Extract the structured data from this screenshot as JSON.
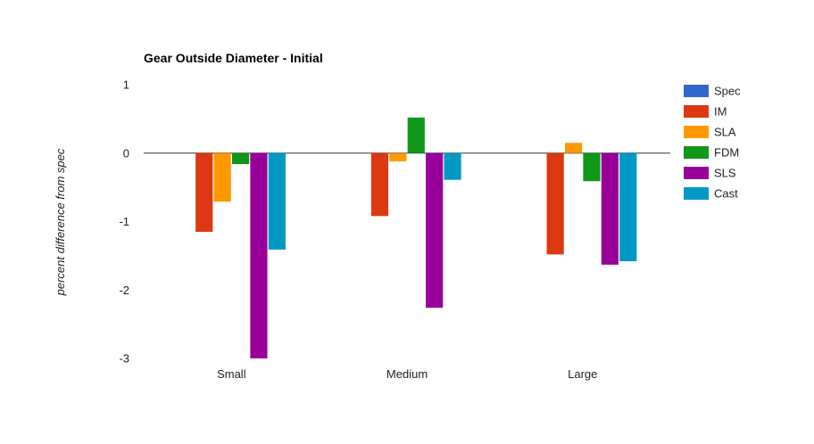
{
  "chart_data": {
    "type": "bar",
    "title": "Gear Outside Diameter - Initial",
    "xlabel": "",
    "ylabel": "percent difference from spec",
    "categories": [
      "Small",
      "Medium",
      "Large"
    ],
    "ylim": [
      -3,
      1
    ],
    "yticks": [
      1,
      0,
      -1,
      -2,
      -3
    ],
    "grid": false,
    "legend_position": "right",
    "series": [
      {
        "name": "Spec",
        "color": "#3366cc",
        "values": [
          0,
          0,
          0
        ]
      },
      {
        "name": "IM",
        "color": "#dc3912",
        "values": [
          -1.15,
          -0.92,
          -1.48
        ]
      },
      {
        "name": "SLA",
        "color": "#ff9900",
        "values": [
          -0.71,
          -0.12,
          0.15
        ]
      },
      {
        "name": "FDM",
        "color": "#109618",
        "values": [
          -0.16,
          0.52,
          -0.41
        ]
      },
      {
        "name": "SLS",
        "color": "#990099",
        "values": [
          -3.0,
          -2.26,
          -1.63
        ]
      },
      {
        "name": "Cast",
        "color": "#0099c6",
        "values": [
          -1.41,
          -0.39,
          -1.58
        ]
      }
    ]
  }
}
